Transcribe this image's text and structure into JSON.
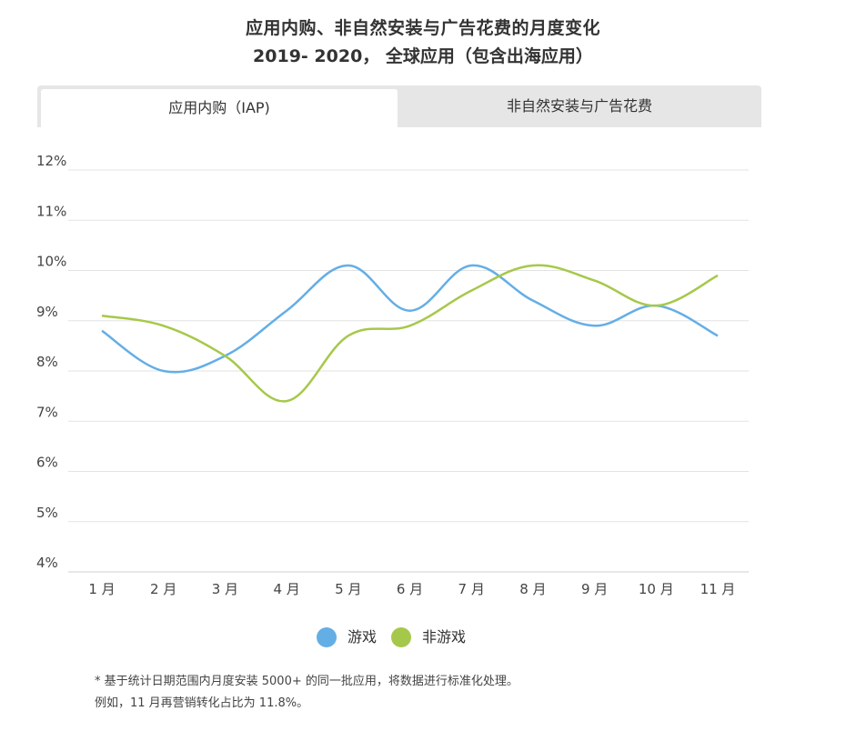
{
  "title_line1": "应用内购、非自然安装与广告花费的月度变化",
  "title_line2": "2019- 2020， 全球应用（包含出海应用）",
  "tabs": [
    {
      "label": "应用内购（IAP)",
      "active": true
    },
    {
      "label": "非自然安装与广告花费",
      "active": false
    }
  ],
  "chart_data": {
    "type": "line",
    "categories": [
      "1 月",
      "2 月",
      "3 月",
      "4 月",
      "5 月",
      "6 月",
      "7 月",
      "8 月",
      "9 月",
      "10 月",
      "11 月"
    ],
    "series": [
      {
        "name": "游戏",
        "color": "#64aee6",
        "values": [
          8.8,
          8.0,
          8.3,
          9.2,
          10.1,
          9.2,
          10.1,
          9.4,
          8.9,
          9.3,
          8.7
        ]
      },
      {
        "name": "非游戏",
        "color": "#a6c84a",
        "values": [
          9.1,
          8.9,
          8.3,
          7.4,
          8.7,
          8.9,
          9.6,
          10.1,
          9.8,
          9.3,
          9.9
        ]
      }
    ],
    "ylim": [
      4,
      12
    ],
    "yticks": [
      "4%",
      "5%",
      "6%",
      "7%",
      "8%",
      "9%",
      "10%",
      "11%",
      "12%"
    ],
    "grid": true,
    "legend_position": "bottom-center"
  },
  "footnote": {
    "line1": "* 基于统计日期范围内月度安装 5000+ 的同一批应用，将数据进行标准化处理。",
    "line2": "例如，11 月再营销转化占比为 11.8%。"
  }
}
